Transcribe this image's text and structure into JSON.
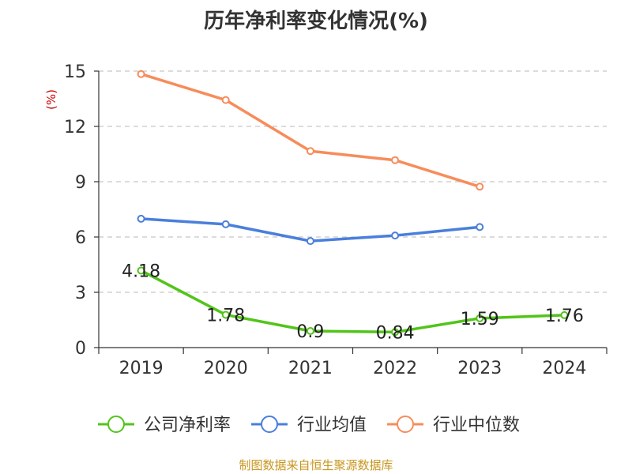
{
  "chart_data": {
    "type": "line",
    "title": "历年净利率变化情况(%)",
    "xlabel": "",
    "ylabel": "(%)",
    "categories": [
      "2019",
      "2020",
      "2021",
      "2022",
      "2023",
      "2024"
    ],
    "ylim": [
      0,
      15
    ],
    "yticks": [
      0,
      3,
      6,
      9,
      12,
      15
    ],
    "grid": true,
    "legend_position": "bottom",
    "series": [
      {
        "name": "公司净利率",
        "color": "#52c41a",
        "values": [
          4.18,
          1.78,
          0.9,
          0.84,
          1.59,
          1.76
        ],
        "labels": [
          "4.18",
          "1.78",
          "0.9",
          "0.84",
          "1.59",
          "1.76"
        ]
      },
      {
        "name": "行业均值",
        "color": "#4a7fdb",
        "values": [
          6.99,
          6.69,
          5.78,
          6.08,
          6.54,
          null
        ]
      },
      {
        "name": "行业中位数",
        "color": "#f78c5a",
        "values": [
          14.84,
          13.43,
          10.66,
          10.17,
          8.73,
          null
        ]
      }
    ]
  },
  "footer": {
    "source": "制图数据来自恒生聚源数据库"
  }
}
